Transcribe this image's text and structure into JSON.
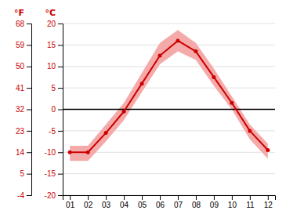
{
  "chart_data": {
    "type": "line",
    "x": [
      1,
      2,
      3,
      4,
      5,
      6,
      7,
      8,
      9,
      10,
      11,
      12
    ],
    "xlim": [
      0.6,
      12.4
    ],
    "xticks": [
      {
        "value": 1,
        "label": "01"
      },
      {
        "value": 2,
        "label": "02"
      },
      {
        "value": 3,
        "label": "03"
      },
      {
        "value": 4,
        "label": "04"
      },
      {
        "value": 5,
        "label": "05"
      },
      {
        "value": 6,
        "label": "06"
      },
      {
        "value": 7,
        "label": "07"
      },
      {
        "value": 8,
        "label": "08"
      },
      {
        "value": 9,
        "label": "09"
      },
      {
        "value": 10,
        "label": "10"
      },
      {
        "value": 11,
        "label": "11"
      },
      {
        "value": 12,
        "label": "12"
      }
    ],
    "ylabel": "°C",
    "ylim": [
      -20,
      20
    ],
    "yticks": [
      -20,
      -15,
      -10,
      -5,
      0,
      5,
      10,
      15,
      20
    ],
    "y2label": "°F",
    "y2lim": [
      -4,
      68
    ],
    "y2ticks": [
      -4,
      5,
      14,
      23,
      32,
      41,
      50,
      59,
      68
    ],
    "grid": true,
    "reference_lines": [
      {
        "y": 0,
        "color": "#000000"
      }
    ],
    "series": [
      {
        "type": "band",
        "color": "#f5aaaa",
        "lower": [
          -12.0,
          -12.0,
          -7.5,
          -2.5,
          4.0,
          10.5,
          13.5,
          11.5,
          5.5,
          0.0,
          -7.0,
          -11.5
        ],
        "upper": [
          -8.5,
          -8.5,
          -3.5,
          1.5,
          8.5,
          15.5,
          18.5,
          15.5,
          9.5,
          3.0,
          -3.5,
          -8.0
        ]
      },
      {
        "type": "line",
        "color": "#cc0000",
        "marker": "circle",
        "values": [
          -10.0,
          -10.0,
          -5.5,
          -0.5,
          6.0,
          12.5,
          16.0,
          13.5,
          7.5,
          1.5,
          -5.0,
          -9.5
        ]
      }
    ]
  }
}
